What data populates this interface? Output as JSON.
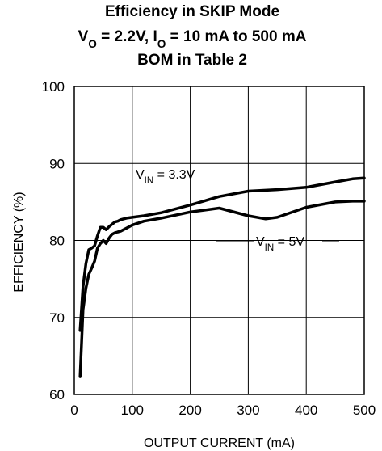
{
  "chart_data": {
    "type": "line",
    "title_lines": [
      {
        "parts": [
          {
            "t": "Efficiency in SKIP Mode"
          }
        ]
      },
      {
        "parts": [
          {
            "t": "V"
          },
          {
            "t": "O",
            "sub": true
          },
          {
            "t": " = 2.2V, I"
          },
          {
            "t": "O",
            "sub": true
          },
          {
            "t": " = 10 mA to 500 mA"
          }
        ]
      },
      {
        "parts": [
          {
            "t": "BOM in Table 2"
          }
        ]
      }
    ],
    "xlabel": "OUTPUT CURRENT (mA)",
    "ylabel": "EFFICIENCY (%)",
    "xlim": [
      0,
      500
    ],
    "ylim": [
      60,
      100
    ],
    "x_ticks": [
      0,
      100,
      200,
      300,
      400,
      500
    ],
    "y_ticks": [
      60,
      70,
      80,
      90,
      100
    ],
    "grid": true,
    "series": [
      {
        "name_parts": [
          {
            "t": "V"
          },
          {
            "t": "IN",
            "sub": true
          },
          {
            "t": " = 3.3V"
          }
        ],
        "x": [
          10,
          15,
          20,
          25,
          30,
          35,
          40,
          45,
          50,
          55,
          60,
          65,
          70,
          75,
          80,
          90,
          100,
          120,
          150,
          200,
          250,
          300,
          350,
          400,
          450,
          480,
          500
        ],
        "y": [
          68.3,
          74.0,
          77.0,
          78.8,
          79.0,
          79.3,
          80.6,
          81.7,
          81.7,
          81.4,
          81.8,
          82.1,
          82.4,
          82.5,
          82.7,
          82.9,
          83.0,
          83.2,
          83.6,
          84.6,
          85.7,
          86.4,
          86.6,
          86.9,
          87.6,
          88.0,
          88.1
        ]
      },
      {
        "name_parts": [
          {
            "t": "V"
          },
          {
            "t": "IN",
            "sub": true
          },
          {
            "t": " = 5V"
          }
        ],
        "x": [
          10,
          15,
          20,
          25,
          30,
          35,
          40,
          45,
          50,
          55,
          60,
          65,
          70,
          75,
          80,
          90,
          100,
          120,
          150,
          200,
          250,
          300,
          330,
          350,
          400,
          450,
          480,
          500
        ],
        "y": [
          62.3,
          71.0,
          73.8,
          75.6,
          76.4,
          77.3,
          79.0,
          79.6,
          80.0,
          79.6,
          80.3,
          80.8,
          81.0,
          81.1,
          81.2,
          81.6,
          82.0,
          82.5,
          82.9,
          83.7,
          84.2,
          83.2,
          82.8,
          83.0,
          84.3,
          85.0,
          85.1,
          85.1
        ]
      }
    ]
  }
}
